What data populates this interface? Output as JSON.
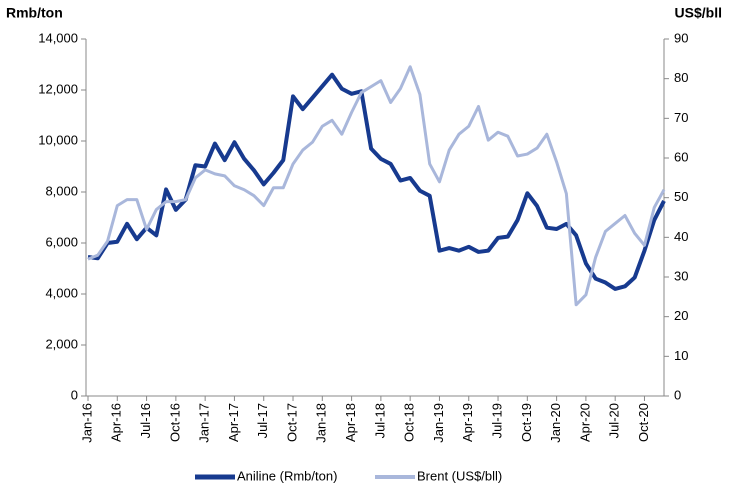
{
  "chart_data": {
    "type": "line",
    "y_label": "Rmb/ton",
    "y2_label": "US$/bll",
    "categories": [
      "Jan-16",
      null,
      null,
      "Apr-16",
      null,
      null,
      "Jul-16",
      null,
      null,
      "Oct-16",
      null,
      null,
      "Jan-17",
      null,
      null,
      "Apr-17",
      null,
      null,
      "Jul-17",
      null,
      null,
      "Oct-17",
      null,
      null,
      "Jan-18",
      null,
      null,
      "Apr-18",
      null,
      null,
      "Jul-18",
      null,
      null,
      "Oct-18",
      null,
      null,
      "Jan-19",
      null,
      null,
      "Apr-19",
      null,
      null,
      "Jul-19",
      null,
      null,
      "Oct-19",
      null,
      null,
      "Jan-20",
      null,
      null,
      "Apr-20",
      null,
      null,
      "Jul-20",
      null,
      null,
      "Oct-20",
      null,
      null
    ],
    "series": [
      {
        "name": "Aniline (Rmb/ton)",
        "color": "#173a8f",
        "values": [
          5450,
          5400,
          6000,
          6050,
          6750,
          6150,
          6600,
          6300,
          8100,
          7300,
          7700,
          9050,
          9000,
          9900,
          9250,
          9950,
          9300,
          8850,
          8300,
          8750,
          9250,
          11750,
          11250,
          11700,
          12150,
          12600,
          12050,
          11850,
          11950,
          9700,
          9300,
          9100,
          8450,
          8550,
          8050,
          7850,
          5700,
          5800,
          5700,
          5850,
          5650,
          5700,
          6200,
          6250,
          6900,
          7950,
          7450,
          6600,
          6550,
          6750,
          6300,
          5200,
          4600,
          4450,
          4200,
          4300,
          4650,
          5700,
          6900,
          7650
        ]
      },
      {
        "name": "Brent (US$/bll)",
        "color": "#a9b7db",
        "axis": "y2",
        "values": [
          34.5,
          35.5,
          39,
          48,
          49.5,
          49.5,
          42,
          47,
          49,
          49,
          49.5,
          55,
          57,
          56,
          55.5,
          53,
          52,
          50.5,
          48,
          52.5,
          52.5,
          58.5,
          62,
          64,
          68,
          69.5,
          66,
          71.5,
          76.5,
          78,
          79.5,
          74,
          77.5,
          83,
          76,
          58.5,
          54,
          62,
          66,
          68,
          73,
          64.5,
          66.5,
          65.5,
          60.5,
          61,
          62.5,
          66,
          59,
          51,
          23,
          25.5,
          35,
          41.5,
          43.5,
          45.5,
          41,
          38,
          47.5,
          52
        ]
      }
    ],
    "ylim": [
      0,
      14000
    ],
    "yticks": [
      0,
      {
        "value": 2000,
        "label": "2,000"
      },
      {
        "value": 4000,
        "label": "4,000"
      },
      {
        "value": 6000,
        "label": "6,000"
      },
      {
        "value": 8000,
        "label": "8,000"
      },
      {
        "value": 10000,
        "label": "10,000"
      },
      {
        "value": 12000,
        "label": "12,000"
      },
      {
        "value": 14000,
        "label": "14,000"
      }
    ],
    "y2lim": [
      0,
      90
    ],
    "y2ticks": [
      0,
      10,
      20,
      30,
      40,
      50,
      60,
      70,
      80,
      90
    ],
    "grid": false,
    "legend": "bottom"
  }
}
